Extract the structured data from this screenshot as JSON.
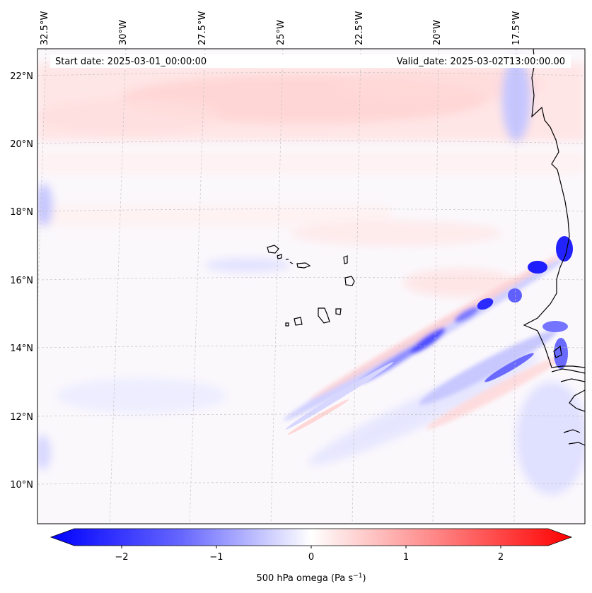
{
  "map": {
    "header": {
      "start_date": "Start date: 2025-03-01_00:00:00",
      "valid_date": "Valid_date: 2025-03-02T13:00:00.00"
    },
    "longitude_labels": [
      "32.5°W",
      "30°W",
      "27.5°W",
      "25°W",
      "22.5°W",
      "20°W",
      "17.5°W"
    ],
    "latitude_labels": [
      "22°N",
      "20°N",
      "18°N",
      "16°N",
      "14°N",
      "12°N",
      "10°N"
    ],
    "colorbar": {
      "ticks": [
        "−2",
        "−1",
        "0",
        "1",
        "2"
      ],
      "label": "500 hPa omega (Pa s",
      "label_sup": "−1",
      "label_end": ")",
      "min_color": "#0000ff",
      "mid_color": "#ffffff",
      "max_color": "#ff0000"
    }
  }
}
